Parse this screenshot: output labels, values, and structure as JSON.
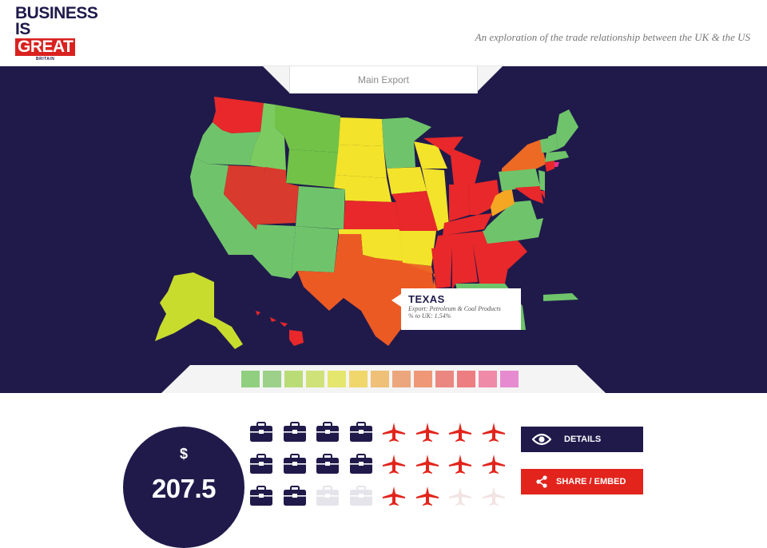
{
  "header": {
    "logo": {
      "line1": "BUSINESS",
      "line2": "IS",
      "line3": "GREAT",
      "line4": "BRITAIN"
    },
    "tagline": "An exploration of the trade relationship between the UK & the US"
  },
  "map": {
    "tab_label": "Main Export",
    "background": "#201a4b",
    "tooltip": {
      "state": "TEXAS",
      "export_line": "Export: Petroleum & Coal Products",
      "share_line": "% to UK: 1.54%"
    },
    "legend_colors": [
      "#8fcf7f",
      "#9dd18a",
      "#b9dc77",
      "#cfe27a",
      "#e5e66e",
      "#efd76c",
      "#efc077",
      "#eba67d",
      "#ee9878",
      "#ea8780",
      "#ec7d80",
      "#ef8aa9",
      "#e68bd0"
    ]
  },
  "summary": {
    "currency": "$",
    "amount": "207.5",
    "icon_rows": [
      [
        "briefcase",
        "briefcase",
        "briefcase",
        "briefcase",
        "plane",
        "plane",
        "plane",
        "plane"
      ],
      [
        "briefcase",
        "briefcase",
        "briefcase",
        "briefcase",
        "plane",
        "plane",
        "plane",
        "plane"
      ],
      [
        "briefcase",
        "briefcase",
        "briefcase-faded",
        "briefcase-faded",
        "plane",
        "plane",
        "plane-faded",
        "plane-faded"
      ]
    ],
    "details_label": "DETAILS",
    "share_label": "SHARE / EMBED",
    "colors": {
      "navy": "#201a4b",
      "red": "#e2241c"
    }
  }
}
